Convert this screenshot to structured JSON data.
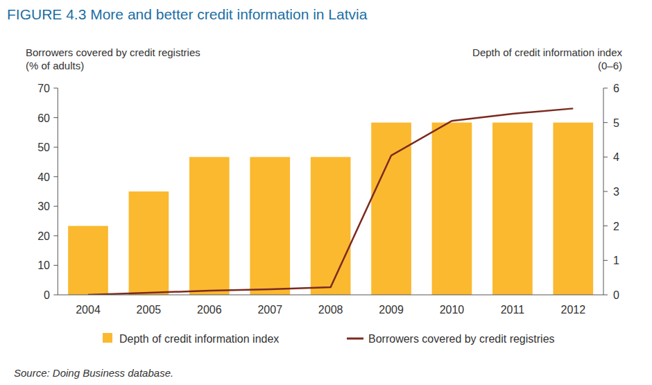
{
  "chart_data": {
    "type": "bar",
    "title": "FIGURE 4.3 More and better credit information in Latvia",
    "y_label": [
      "Borrowers covered by credit registries",
      "(% of adults)"
    ],
    "y2_label": [
      "Depth of credit information index",
      "(0–6)"
    ],
    "source": "Source: Doing Business database.",
    "categories": [
      "2004",
      "2005",
      "2006",
      "2007",
      "2008",
      "2009",
      "2010",
      "2011",
      "2012"
    ],
    "series": [
      {
        "name": "Depth of credit information index",
        "type": "bar",
        "axis": "y2",
        "color": "#fbb930",
        "values": [
          2,
          3,
          4,
          4,
          4,
          5,
          5,
          5,
          5
        ]
      },
      {
        "name": "Borrowers covered by credit registries",
        "type": "line",
        "color": "#7b2a1e",
        "line_style": "solid",
        "values": [
          0,
          0.7,
          1.4,
          1.9,
          2.6,
          47.2,
          58.9,
          61.3,
          63.1
        ]
      }
    ],
    "ylim": [
      0,
      70
    ],
    "yticks": [
      0,
      10,
      20,
      30,
      40,
      50,
      60,
      70
    ],
    "y2lim": [
      0,
      6
    ],
    "y2ticks": [
      0,
      1,
      2,
      3,
      4,
      5,
      6
    ],
    "grid": false,
    "legend": "bottom"
  }
}
